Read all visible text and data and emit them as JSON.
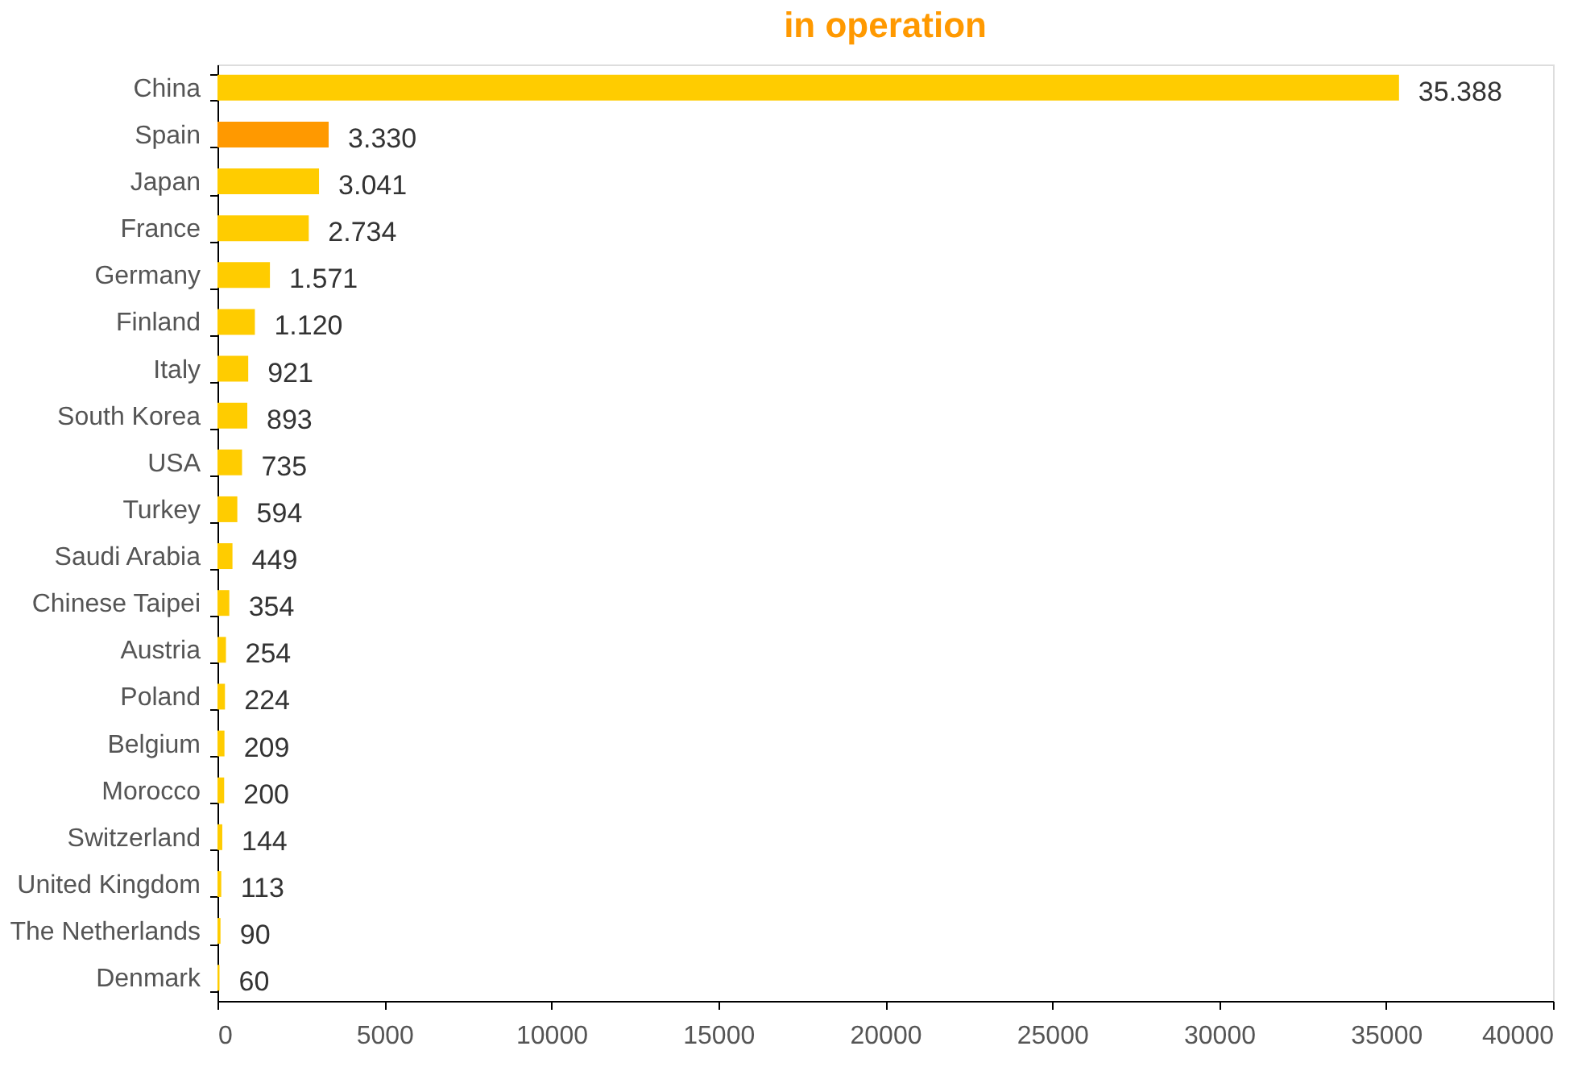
{
  "chart_data": {
    "type": "bar",
    "orientation": "horizontal",
    "title": "in operation",
    "categories": [
      "China",
      "Spain",
      "Japan",
      "France",
      "Germany",
      "Finland",
      "Italy",
      "South Korea",
      "USA",
      "Turkey",
      "Saudi Arabia",
      "Chinese Taipei",
      "Austria",
      "Poland",
      "Belgium",
      "Morocco",
      "Switzerland",
      "United Kingdom",
      "The Netherlands",
      "Denmark"
    ],
    "values": [
      35388,
      3330,
      3041,
      2734,
      1571,
      1120,
      921,
      893,
      735,
      594,
      449,
      354,
      254,
      224,
      209,
      200,
      144,
      113,
      90,
      60
    ],
    "value_labels": [
      "35.388",
      "3.330",
      "3.041",
      "2.734",
      "1.571",
      "1.120",
      "921",
      "893",
      "735",
      "594",
      "449",
      "354",
      "254",
      "224",
      "209",
      "200",
      "144",
      "113",
      "90",
      "60"
    ],
    "colors": [
      "#ffcc00",
      "#ff9900",
      "#ffcc00",
      "#ffcc00",
      "#ffcc00",
      "#ffcc00",
      "#ffcc00",
      "#ffcc00",
      "#ffcc00",
      "#ffcc00",
      "#ffcc00",
      "#ffcc00",
      "#ffcc00",
      "#ffcc00",
      "#ffcc00",
      "#ffcc00",
      "#ffcc00",
      "#ffcc00",
      "#ffcc00",
      "#ffcc00"
    ],
    "xlim": [
      0,
      40000
    ],
    "xticks": [
      0,
      5000,
      10000,
      15000,
      20000,
      25000,
      30000,
      35000,
      40000
    ],
    "grid": false
  }
}
